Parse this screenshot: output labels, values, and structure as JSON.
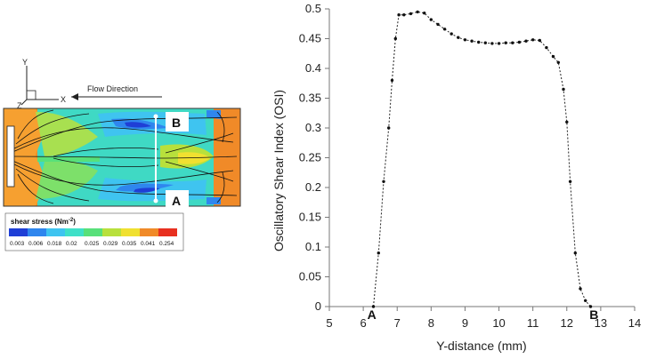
{
  "contour": {
    "axis_y": "Y",
    "axis_x": "X",
    "axis_z": "Z",
    "flow_label": "Flow Direction",
    "point_b": "B",
    "point_a": "A",
    "legend_title": "shear stress (Nm",
    "legend_sup": "-2",
    "legend_close": ")",
    "legend_ticks": [
      "0.003",
      "0.006",
      "0.018",
      "0.02",
      "0.025",
      "0.029",
      "0.035",
      "0.041",
      "0.254"
    ],
    "legend_colors": [
      "#1f3fd6",
      "#2f86ee",
      "#3fc4f0",
      "#3fe0c8",
      "#58e07a",
      "#b8e03c",
      "#f0e030",
      "#f08a28",
      "#e83020"
    ]
  },
  "chart_data": {
    "type": "line",
    "title": "",
    "xlabel": "Y-distance (mm)",
    "ylabel": "Oscillatory Shear Index (OSI)",
    "xlim": [
      5,
      14
    ],
    "ylim": [
      0,
      0.5
    ],
    "xticks": [
      5,
      6,
      7,
      8,
      9,
      10,
      11,
      12,
      13,
      14
    ],
    "yticks": [
      0,
      0.05,
      0.1,
      0.15,
      0.2,
      0.25,
      0.3,
      0.35,
      0.4,
      0.45,
      0.5
    ],
    "grid": false,
    "line_style": "dotted",
    "marker": "dot",
    "annotations": [
      {
        "text": "A",
        "x": 6.25,
        "y": 0
      },
      {
        "text": "B",
        "x": 12.8,
        "y": 0
      }
    ],
    "series": [
      {
        "x": [
          6.3,
          6.45,
          6.6,
          6.75,
          6.85,
          6.95,
          7.05,
          7.2,
          7.4,
          7.6,
          7.8,
          8.0,
          8.2,
          8.4,
          8.6,
          8.8,
          9.0,
          9.2,
          9.4,
          9.6,
          9.8,
          10.0,
          10.2,
          10.4,
          10.6,
          10.8,
          11.0,
          11.2,
          11.4,
          11.6,
          11.75,
          11.9,
          12.0,
          12.1,
          12.25,
          12.4,
          12.55,
          12.7
        ],
        "y": [
          0.0,
          0.09,
          0.21,
          0.3,
          0.38,
          0.45,
          0.49,
          0.49,
          0.492,
          0.495,
          0.493,
          0.482,
          0.474,
          0.466,
          0.458,
          0.452,
          0.448,
          0.446,
          0.444,
          0.443,
          0.442,
          0.442,
          0.443,
          0.443,
          0.444,
          0.446,
          0.448,
          0.447,
          0.435,
          0.42,
          0.41,
          0.365,
          0.31,
          0.21,
          0.09,
          0.03,
          0.01,
          0.0
        ]
      }
    ]
  }
}
